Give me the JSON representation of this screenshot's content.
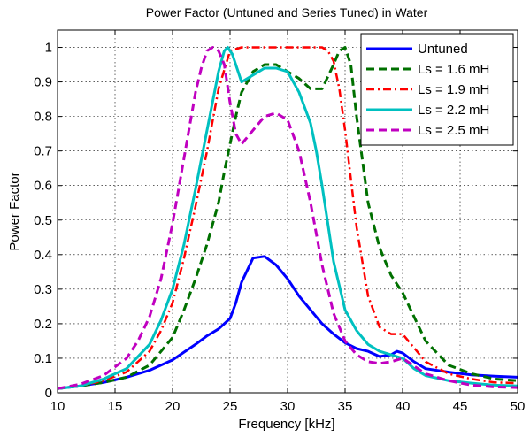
{
  "chart_data": {
    "type": "line",
    "title": "Power Factor (Untuned and Series Tuned) in Water",
    "xlabel": "Frequency [kHz]",
    "ylabel": "Power Factor",
    "xlim": [
      10,
      50
    ],
    "ylim": [
      0,
      1.05
    ],
    "x_ticks": [
      10,
      15,
      20,
      25,
      30,
      35,
      40,
      45,
      50
    ],
    "y_ticks": [
      0,
      0.1,
      0.2,
      0.3,
      0.4,
      0.5,
      0.6,
      0.7,
      0.8,
      0.9,
      1
    ],
    "x_tick_labels": [
      "10",
      "15",
      "20",
      "25",
      "30",
      "35",
      "40",
      "45",
      "50"
    ],
    "y_tick_labels": [
      "0",
      "0.1",
      "0.2",
      "0.3",
      "0.4",
      "0.5",
      "0.6",
      "0.7",
      "0.8",
      "0.9",
      "1"
    ],
    "grid": true,
    "legend_position": "top-right",
    "series": [
      {
        "name": "Untuned",
        "color": "#0000ff",
        "style": "solid",
        "x": [
          10,
          12,
          14,
          16,
          18,
          20,
          22,
          23,
          24,
          25,
          25.5,
          26,
          27,
          28,
          29,
          30,
          31,
          32,
          33,
          34,
          35,
          36,
          37,
          38,
          39,
          39.5,
          40,
          41,
          42,
          44,
          46,
          48,
          50
        ],
        "y": [
          0.012,
          0.02,
          0.03,
          0.045,
          0.065,
          0.095,
          0.14,
          0.165,
          0.185,
          0.215,
          0.26,
          0.32,
          0.39,
          0.395,
          0.37,
          0.33,
          0.28,
          0.24,
          0.2,
          0.17,
          0.145,
          0.128,
          0.12,
          0.105,
          0.11,
          0.12,
          0.115,
          0.09,
          0.07,
          0.06,
          0.052,
          0.048,
          0.045
        ]
      },
      {
        "name": "Ls = 1.6 mH",
        "color": "#007000",
        "style": "dash",
        "x": [
          10,
          12,
          14,
          16,
          18,
          20,
          21,
          22,
          23,
          24,
          24.5,
          25,
          25.5,
          26,
          27,
          28,
          29,
          30,
          31,
          32,
          33,
          34,
          34.5,
          35,
          35.5,
          36,
          37,
          38,
          39,
          40,
          41,
          42,
          44,
          46,
          48,
          50
        ],
        "y": [
          0.012,
          0.02,
          0.03,
          0.045,
          0.08,
          0.16,
          0.24,
          0.33,
          0.43,
          0.55,
          0.64,
          0.72,
          0.8,
          0.87,
          0.93,
          0.95,
          0.95,
          0.93,
          0.91,
          0.88,
          0.88,
          0.95,
          0.99,
          1.0,
          0.95,
          0.8,
          0.55,
          0.42,
          0.34,
          0.29,
          0.22,
          0.15,
          0.08,
          0.055,
          0.04,
          0.035
        ]
      },
      {
        "name": "Ls = 1.9 mH",
        "color": "#ff0000",
        "style": "dashdot",
        "x": [
          10,
          12,
          14,
          16,
          18,
          19,
          20,
          21,
          22,
          23,
          24,
          25,
          26,
          27,
          28,
          29,
          30,
          31,
          32,
          33,
          33.5,
          34,
          34.5,
          35,
          36,
          37,
          38,
          39,
          40,
          41,
          42,
          44,
          46,
          48,
          50
        ],
        "y": [
          0.012,
          0.02,
          0.035,
          0.06,
          0.12,
          0.18,
          0.26,
          0.39,
          0.54,
          0.7,
          0.88,
          0.99,
          1.0,
          1.0,
          1.0,
          1.0,
          1.0,
          1.0,
          1.0,
          1.0,
          0.99,
          0.96,
          0.88,
          0.76,
          0.48,
          0.28,
          0.19,
          0.17,
          0.17,
          0.13,
          0.09,
          0.055,
          0.04,
          0.03,
          0.028
        ]
      },
      {
        "name": "Ls = 2.2 mH",
        "color": "#00c0c0",
        "style": "solid",
        "x": [
          10,
          12,
          14,
          16,
          18,
          19,
          20,
          21,
          22,
          23,
          24,
          24.5,
          24.8,
          25.2,
          26,
          27,
          28,
          29,
          30,
          31,
          32,
          32.5,
          33,
          34,
          35,
          36,
          37,
          38,
          39,
          40,
          41,
          42,
          44,
          46,
          48,
          50
        ],
        "y": [
          0.012,
          0.02,
          0.04,
          0.07,
          0.14,
          0.21,
          0.3,
          0.43,
          0.59,
          0.76,
          0.93,
          0.99,
          1.0,
          0.98,
          0.9,
          0.92,
          0.94,
          0.94,
          0.93,
          0.87,
          0.78,
          0.7,
          0.6,
          0.38,
          0.24,
          0.18,
          0.14,
          0.12,
          0.11,
          0.1,
          0.07,
          0.05,
          0.035,
          0.028,
          0.022,
          0.02
        ]
      },
      {
        "name": "Ls = 2.5 mH",
        "color": "#c000c0",
        "style": "dash",
        "x": [
          10,
          12,
          14,
          16,
          17,
          18,
          19,
          20,
          21,
          22,
          22.5,
          23,
          23.5,
          24,
          24.5,
          25,
          25.5,
          26,
          27,
          28,
          29,
          30,
          31,
          32,
          33,
          34,
          35,
          36,
          37,
          38,
          39,
          40,
          42,
          44,
          46,
          48,
          50
        ],
        "y": [
          0.012,
          0.025,
          0.05,
          0.1,
          0.15,
          0.22,
          0.33,
          0.49,
          0.68,
          0.87,
          0.94,
          0.99,
          1.0,
          0.99,
          0.95,
          0.84,
          0.75,
          0.72,
          0.76,
          0.8,
          0.81,
          0.79,
          0.7,
          0.55,
          0.37,
          0.23,
          0.15,
          0.11,
          0.09,
          0.085,
          0.09,
          0.1,
          0.055,
          0.035,
          0.022,
          0.017,
          0.015
        ]
      }
    ]
  }
}
